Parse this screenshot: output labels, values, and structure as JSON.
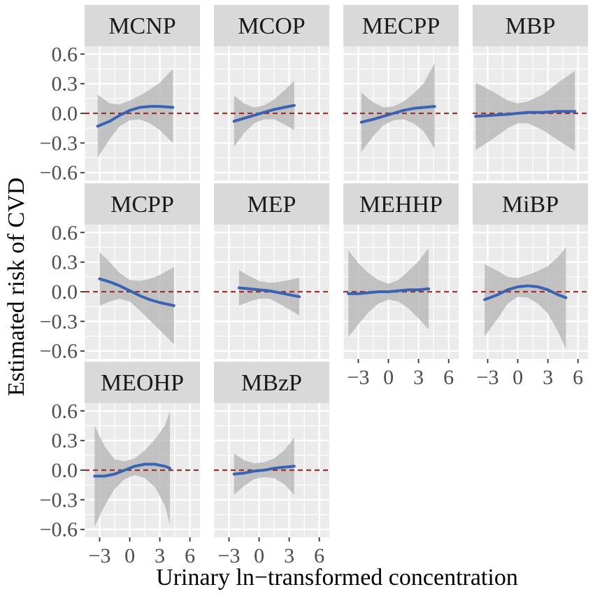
{
  "chart_data": {
    "type": "line",
    "layout": "faceted-3x4",
    "xlabel": "Urinary ln−transformed concentration",
    "ylabel": "Estimated risk of CVD",
    "xlim": [
      -4.5,
      7
    ],
    "ylim": [
      -0.68,
      0.68
    ],
    "x_ticks": [
      -3,
      0,
      3,
      6
    ],
    "x_tick_labels": [
      "−3",
      "0",
      "3",
      "6"
    ],
    "y_ticks": [
      0.6,
      0.3,
      0.0,
      -0.3,
      -0.6
    ],
    "y_tick_labels": [
      "0.6",
      "0.3",
      "0.0",
      "−0.3",
      "−0.6"
    ],
    "reference_line": 0,
    "colors": {
      "line": "#3a63b4",
      "band": "#b3b3b3",
      "reference": "#a0322d",
      "panel_bg": "#ebebeb",
      "strip_bg": "#d9d9d9",
      "grid": "#ffffff"
    },
    "panels": [
      {
        "name": "MCNP",
        "x": [
          -3.2,
          -2,
          -1,
          0,
          1,
          2,
          3,
          4.3
        ],
        "y": [
          -0.13,
          -0.08,
          -0.02,
          0.03,
          0.06,
          0.07,
          0.07,
          0.06
        ],
        "lower": [
          -0.45,
          -0.26,
          -0.13,
          -0.07,
          -0.06,
          -0.1,
          -0.17,
          -0.3
        ],
        "upper": [
          0.19,
          0.1,
          0.09,
          0.13,
          0.18,
          0.24,
          0.31,
          0.45
        ]
      },
      {
        "name": "MCOP",
        "x": [
          -2.5,
          -1.5,
          -0.5,
          0.5,
          1.5,
          2.5,
          3.5
        ],
        "y": [
          -0.08,
          -0.05,
          -0.02,
          0.01,
          0.04,
          0.06,
          0.08
        ],
        "lower": [
          -0.34,
          -0.2,
          -0.1,
          -0.06,
          -0.06,
          -0.11,
          -0.17
        ],
        "upper": [
          0.18,
          0.1,
          0.06,
          0.08,
          0.14,
          0.23,
          0.33
        ]
      },
      {
        "name": "MECPP",
        "x": [
          -2.7,
          -1.5,
          -0.5,
          0.5,
          1.5,
          2.5,
          3.5,
          4.6
        ],
        "y": [
          -0.09,
          -0.06,
          -0.03,
          0.0,
          0.03,
          0.05,
          0.06,
          0.07
        ],
        "lower": [
          -0.39,
          -0.23,
          -0.12,
          -0.07,
          -0.06,
          -0.1,
          -0.18,
          -0.36
        ],
        "upper": [
          0.21,
          0.11,
          0.06,
          0.07,
          0.12,
          0.2,
          0.3,
          0.51
        ]
      },
      {
        "name": "MBP",
        "x": [
          -4.2,
          -2.5,
          -1,
          0,
          1,
          2.5,
          4,
          5.7
        ],
        "y": [
          -0.03,
          -0.02,
          -0.01,
          0.0,
          0.01,
          0.01,
          0.02,
          0.02
        ],
        "lower": [
          -0.37,
          -0.26,
          -0.15,
          -0.1,
          -0.1,
          -0.17,
          -0.27,
          -0.38
        ],
        "upper": [
          0.31,
          0.22,
          0.13,
          0.1,
          0.12,
          0.19,
          0.31,
          0.43
        ]
      },
      {
        "name": "MCPP",
        "x": [
          -3,
          -2,
          -1,
          0,
          1,
          2,
          3,
          4.4
        ],
        "y": [
          0.13,
          0.1,
          0.06,
          0.01,
          -0.04,
          -0.08,
          -0.11,
          -0.14
        ],
        "lower": [
          -0.14,
          -0.1,
          -0.07,
          -0.1,
          -0.19,
          -0.29,
          -0.39,
          -0.53
        ],
        "upper": [
          0.4,
          0.3,
          0.19,
          0.12,
          0.11,
          0.13,
          0.17,
          0.25
        ]
      },
      {
        "name": "MEP",
        "x": [
          -2,
          -1,
          0,
          1,
          2,
          3,
          4
        ],
        "y": [
          0.04,
          0.03,
          0.02,
          0.01,
          -0.01,
          -0.03,
          -0.05
        ],
        "lower": [
          -0.14,
          -0.1,
          -0.07,
          -0.07,
          -0.12,
          -0.18,
          -0.24
        ],
        "upper": [
          0.22,
          0.16,
          0.11,
          0.09,
          0.1,
          0.12,
          0.14
        ]
      },
      {
        "name": "MEHHP",
        "x": [
          -4,
          -3,
          -2,
          -1,
          0,
          1,
          2,
          3,
          4
        ],
        "y": [
          -0.02,
          -0.02,
          -0.01,
          0.0,
          0.0,
          0.01,
          0.02,
          0.02,
          0.03
        ],
        "lower": [
          -0.46,
          -0.33,
          -0.21,
          -0.12,
          -0.08,
          -0.1,
          -0.17,
          -0.27,
          -0.38
        ],
        "upper": [
          0.42,
          0.29,
          0.19,
          0.12,
          0.08,
          0.12,
          0.21,
          0.31,
          0.44
        ]
      },
      {
        "name": "MiBP",
        "x": [
          -3.3,
          -2,
          -1,
          0,
          1,
          2,
          3,
          4,
          4.8
        ],
        "y": [
          -0.08,
          -0.03,
          0.02,
          0.05,
          0.06,
          0.05,
          0.02,
          -0.03,
          -0.06
        ],
        "lower": [
          -0.45,
          -0.27,
          -0.12,
          -0.05,
          -0.06,
          -0.12,
          -0.22,
          -0.4,
          -0.58
        ],
        "upper": [
          0.28,
          0.21,
          0.15,
          0.14,
          0.17,
          0.21,
          0.26,
          0.35,
          0.45
        ]
      },
      {
        "name": "MEOHP",
        "x": [
          -3.5,
          -2.5,
          -1.5,
          -0.5,
          0.5,
          1.5,
          2.5,
          3.5,
          4
        ],
        "y": [
          -0.06,
          -0.06,
          -0.04,
          0.0,
          0.04,
          0.06,
          0.06,
          0.04,
          0.02
        ],
        "lower": [
          -0.57,
          -0.36,
          -0.19,
          -0.09,
          -0.05,
          -0.08,
          -0.17,
          -0.36,
          -0.55
        ],
        "upper": [
          0.45,
          0.24,
          0.11,
          0.09,
          0.12,
          0.2,
          0.31,
          0.45,
          0.6
        ]
      },
      {
        "name": "MBzP",
        "x": [
          -2.5,
          -1.5,
          -0.5,
          0.5,
          1.5,
          2.5,
          3.5
        ],
        "y": [
          -0.04,
          -0.03,
          -0.01,
          0.0,
          0.02,
          0.03,
          0.04
        ],
        "lower": [
          -0.25,
          -0.16,
          -0.09,
          -0.07,
          -0.08,
          -0.14,
          -0.25
        ],
        "upper": [
          0.17,
          0.1,
          0.07,
          0.08,
          0.12,
          0.2,
          0.33
        ]
      }
    ]
  }
}
